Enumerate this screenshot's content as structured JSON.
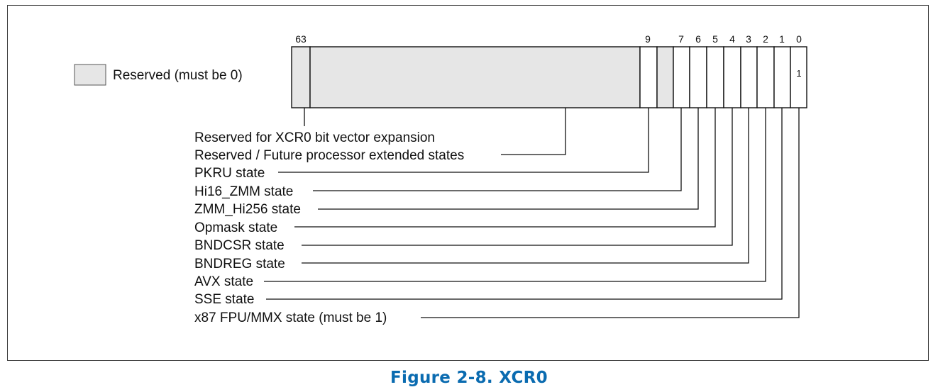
{
  "caption": "Figure 2-8.  XCR0",
  "colors": {
    "reserved_fill": "#e6e6e6",
    "caption": "#0a6bb0",
    "line": "#111111"
  },
  "legend": {
    "label": "Reserved (must be 0)"
  },
  "register": {
    "bit_numbers": [
      "63",
      "9",
      "7",
      "6",
      "5",
      "4",
      "3",
      "2",
      "1",
      "0"
    ],
    "bit0_value": "1"
  },
  "fields": [
    {
      "id": "reserved-expansion",
      "label": "Reserved for XCR0 bit vector expansion"
    },
    {
      "id": "reserved-future",
      "label": "Reserved / Future processor extended states"
    },
    {
      "id": "pkru",
      "label": "PKRU state"
    },
    {
      "id": "hi16-zmm",
      "label": "Hi16_ZMM state"
    },
    {
      "id": "zmm-hi256",
      "label": "ZMM_Hi256 state"
    },
    {
      "id": "opmask",
      "label": "Opmask state"
    },
    {
      "id": "bndcsr",
      "label": "BNDCSR state"
    },
    {
      "id": "bndreg",
      "label": "BNDREG state"
    },
    {
      "id": "avx",
      "label": "AVX state"
    },
    {
      "id": "sse",
      "label": "SSE state"
    },
    {
      "id": "x87",
      "label": "x87 FPU/MMX state (must be 1)"
    }
  ]
}
